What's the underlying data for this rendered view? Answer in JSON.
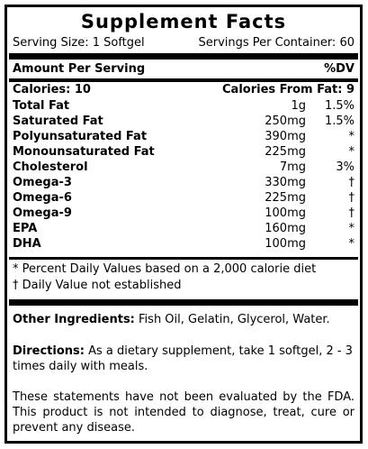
{
  "title": "Supplement Facts",
  "serving": {
    "size": "Serving Size: 1 Softgel",
    "per_container": "Servings Per Container: 60"
  },
  "header": {
    "amount": "Amount Per Serving",
    "dv": "%DV"
  },
  "calories": {
    "label": "Calories: 10",
    "from_fat": "Calories From Fat: 9"
  },
  "nutrients": [
    {
      "name": "Total Fat",
      "amount": "1g",
      "dv": "1.5%"
    },
    {
      "name": "Saturated Fat",
      "amount": "250mg",
      "dv": "1.5%"
    },
    {
      "name": "Polyunsaturated Fat",
      "amount": "390mg",
      "dv": "*"
    },
    {
      "name": "Monounsaturated Fat",
      "amount": "225mg",
      "dv": "*"
    },
    {
      "name": "Cholesterol",
      "amount": "7mg",
      "dv": "3%"
    },
    {
      "name": "Omega-3",
      "amount": "330mg",
      "dv": "†"
    },
    {
      "name": "Omega-6",
      "amount": "225mg",
      "dv": "†"
    },
    {
      "name": "Omega-9",
      "amount": "100mg",
      "dv": "†"
    },
    {
      "name": "EPA",
      "amount": "160mg",
      "dv": "*"
    },
    {
      "name": "DHA",
      "amount": "100mg",
      "dv": "*"
    }
  ],
  "footnotes": {
    "percent_dv": "* Percent Daily Values based on a 2,000 calorie diet",
    "not_established": "† Daily Value not established"
  },
  "ingredients": {
    "label": "Other Ingredients:",
    "text": " Fish Oil, Gelatin, Glycerol, Water."
  },
  "directions": {
    "label": "Directions:",
    "text": " As a dietary supplement, take 1 softgel, 2 - 3 times daily with meals."
  },
  "disclaimer": "These statements have not been evaluated by the FDA. This product is not intended to diagnose, treat, cure or prevent any disease."
}
